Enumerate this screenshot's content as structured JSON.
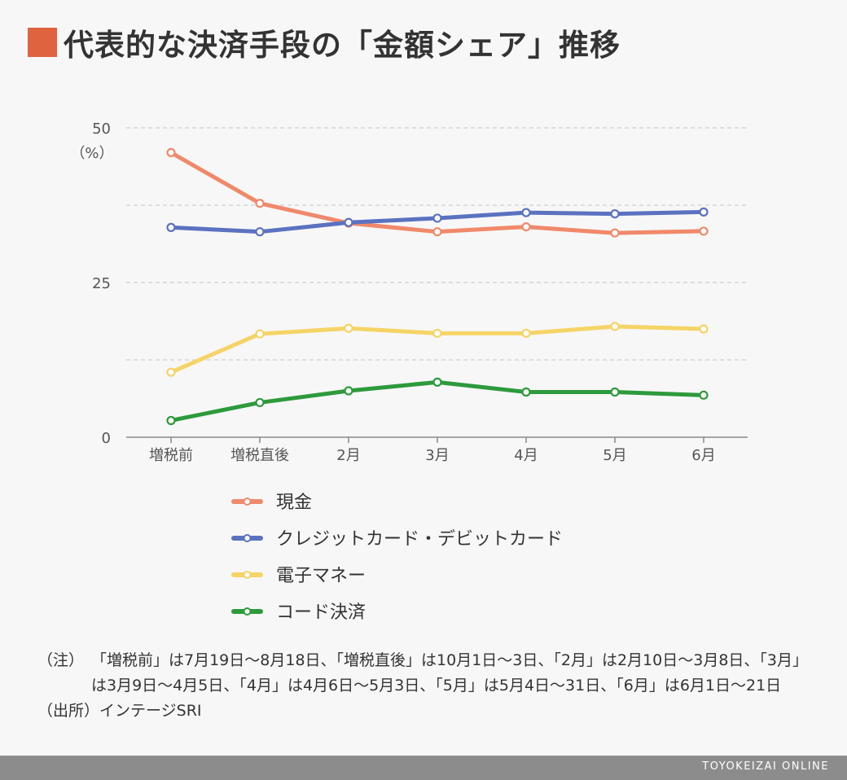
{
  "title": "代表的な決済手段の「金額シェア」推移",
  "colors": {
    "accent": "#e0633f",
    "footer_bg": "#8c8c8c"
  },
  "chart_data": {
    "type": "line",
    "categories": [
      "増税前",
      "増税直後",
      "2月",
      "3月",
      "4月",
      "5月",
      "6月"
    ],
    "ylim": [
      0,
      50
    ],
    "yticks": [
      0,
      25,
      50
    ],
    "ylabel": "（%）",
    "grid": true,
    "legend_position": "bottom",
    "series": [
      {
        "name": "現金",
        "color": "#f0896a",
        "values": [
          46.0,
          37.8,
          34.6,
          33.2,
          34.0,
          33.0,
          33.3
        ]
      },
      {
        "name": "クレジットカード・デビットカード",
        "color": "#5b72c0",
        "values": [
          33.9,
          33.2,
          34.7,
          35.4,
          36.3,
          36.1,
          36.4
        ]
      },
      {
        "name": "電子マネー",
        "color": "#f5d466",
        "values": [
          10.5,
          16.7,
          17.6,
          16.8,
          16.8,
          17.9,
          17.5
        ]
      },
      {
        "name": "コード決済",
        "color": "#2d9a3c",
        "values": [
          2.7,
          5.6,
          7.5,
          8.9,
          7.3,
          7.3,
          6.8
        ]
      }
    ]
  },
  "notes": [
    {
      "label": "（注）",
      "text": "「増税前」は7月19日〜8月18日、「増税直後」は10月1日〜3日、「2月」は2月10日〜3月8日、「3月」は3月9日〜4月5日、「4月」は4月6日〜5月3日、「5月」は5月4日〜31日、「6月」は6月1日〜21日"
    },
    {
      "label": "（出所）",
      "text": "インテージSRI"
    }
  ],
  "footer": {
    "brand": "TOYOKEIZAI ONLINE"
  }
}
